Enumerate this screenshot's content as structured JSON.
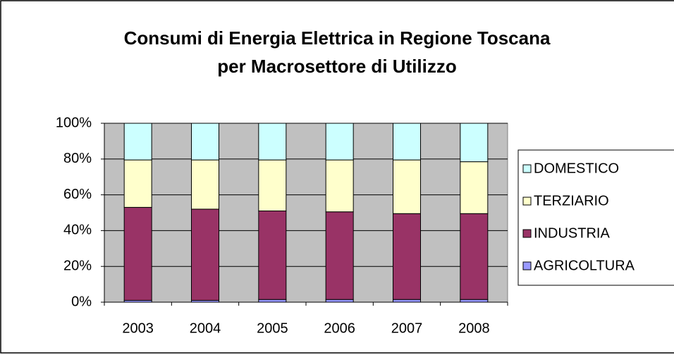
{
  "chart_data": {
    "type": "stacked_bar_100",
    "title": [
      "Consumi di Energia Elettrica in Regione Toscana",
      "per Macrosettore di Utilizzo"
    ],
    "categories": [
      "2003",
      "2004",
      "2005",
      "2006",
      "2007",
      "2008"
    ],
    "series": [
      {
        "name": "AGRICOLTURA",
        "color": "#9999ff",
        "values": [
          1,
          1,
          1.5,
          1.5,
          1.5,
          1.5
        ]
      },
      {
        "name": "INDUSTRIA",
        "color": "#993366",
        "values": [
          52,
          51,
          49.5,
          49,
          48,
          48
        ]
      },
      {
        "name": "TERZIARIO",
        "color": "#ffffcc",
        "values": [
          26.5,
          27.5,
          28.5,
          29,
          30,
          29
        ]
      },
      {
        "name": "DOMESTICO",
        "color": "#ccffff",
        "values": [
          20.5,
          20.5,
          20.5,
          20.5,
          20.5,
          21.5
        ]
      }
    ],
    "ylim": [
      0,
      100
    ],
    "yticks": [
      {
        "value": 0,
        "label": "0%"
      },
      {
        "value": 20,
        "label": "20%"
      },
      {
        "value": 40,
        "label": "40%"
      },
      {
        "value": 60,
        "label": "60%"
      },
      {
        "value": 80,
        "label": "80%"
      },
      {
        "value": 100,
        "label": "100%"
      }
    ],
    "grid": true,
    "plot_background": "#c0c0c0",
    "legend": "right"
  }
}
